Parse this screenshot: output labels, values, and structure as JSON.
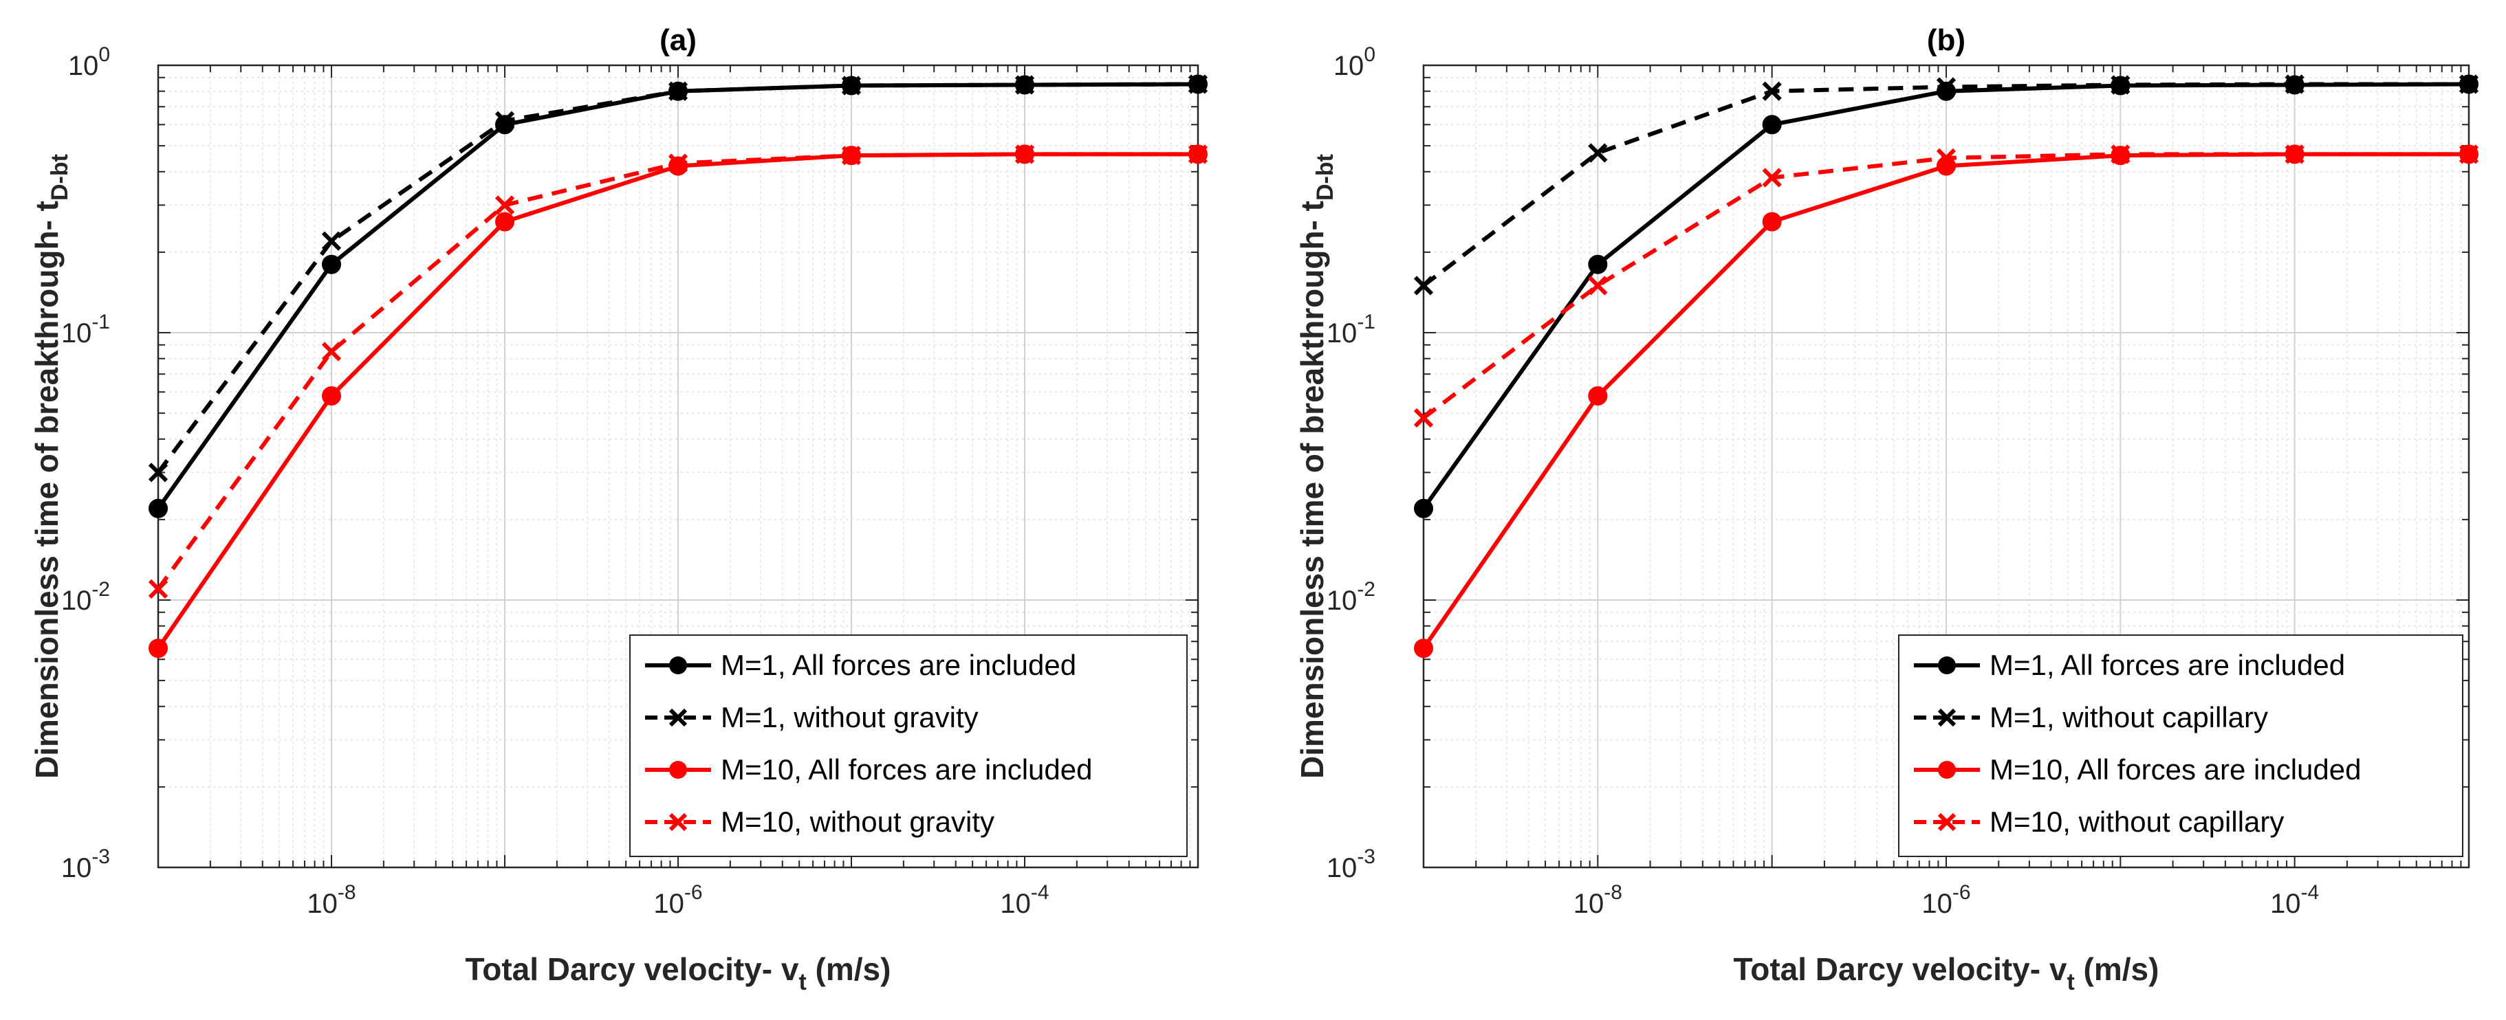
{
  "chart_data": [
    {
      "type": "line",
      "title": "(a)",
      "xlabel": "Total Darcy velocity- v",
      "xlabel_sub": "t",
      "xlabel_unit": " (m/s)",
      "ylabel": "Dimensionless time of breakthrough- t",
      "ylabel_sub": "D-bt",
      "xscale": "log",
      "yscale": "log",
      "xlim_exp": [
        -9,
        -3
      ],
      "ylim_exp": [
        -3,
        0
      ],
      "xtick_exps": [
        -8,
        -6,
        -4
      ],
      "ytick_exps": [
        -3,
        -2,
        -1,
        0
      ],
      "grid": "minor",
      "legend_position": "lower-right",
      "x": [
        1e-09,
        1e-08,
        1e-07,
        1e-06,
        1e-05,
        0.0001,
        0.001
      ],
      "series": [
        {
          "name": "M=1, All forces are included",
          "color": "#000000",
          "style": "solid",
          "marker": "circle",
          "values": [
            0.022,
            0.18,
            0.6,
            0.8,
            0.84,
            0.845,
            0.85
          ]
        },
        {
          "name": "M=1, without gravity",
          "color": "#000000",
          "style": "dashed",
          "marker": "x",
          "values": [
            0.03,
            0.22,
            0.62,
            0.8,
            0.84,
            0.845,
            0.85
          ]
        },
        {
          "name": "M=10, All forces are included",
          "color": "#ff0000",
          "style": "solid",
          "marker": "circle",
          "values": [
            0.0066,
            0.058,
            0.26,
            0.42,
            0.46,
            0.465,
            0.465
          ]
        },
        {
          "name": "M=10, without gravity",
          "color": "#ff0000",
          "style": "dashed",
          "marker": "x",
          "values": [
            0.011,
            0.085,
            0.3,
            0.43,
            0.46,
            0.465,
            0.465
          ]
        }
      ]
    },
    {
      "type": "line",
      "title": "(b)",
      "xlabel": "Total Darcy velocity- v",
      "xlabel_sub": "t",
      "xlabel_unit": " (m/s)",
      "ylabel": "Dimensionless time of breakthrough- t",
      "ylabel_sub": "D-bt",
      "xscale": "log",
      "yscale": "log",
      "xlim_exp": [
        -9,
        -3
      ],
      "ylim_exp": [
        -3,
        0
      ],
      "xtick_exps": [
        -8,
        -6,
        -4
      ],
      "ytick_exps": [
        -3,
        -2,
        -1,
        0
      ],
      "grid": "minor",
      "legend_position": "lower-right",
      "x": [
        1e-09,
        1e-08,
        1e-07,
        1e-06,
        1e-05,
        0.0001,
        0.001
      ],
      "series": [
        {
          "name": "M=1, All forces are included",
          "color": "#000000",
          "style": "solid",
          "marker": "circle",
          "values": [
            0.022,
            0.18,
            0.6,
            0.8,
            0.84,
            0.845,
            0.85
          ]
        },
        {
          "name": "M=1, without capillary",
          "color": "#000000",
          "style": "dashed",
          "marker": "x",
          "values": [
            0.15,
            0.47,
            0.8,
            0.83,
            0.845,
            0.85,
            0.85
          ]
        },
        {
          "name": "M=10, All forces are included",
          "color": "#ff0000",
          "style": "solid",
          "marker": "circle",
          "values": [
            0.0066,
            0.058,
            0.26,
            0.42,
            0.46,
            0.465,
            0.465
          ]
        },
        {
          "name": "M=10, without capillary",
          "color": "#ff0000",
          "style": "dashed",
          "marker": "x",
          "values": [
            0.048,
            0.15,
            0.38,
            0.45,
            0.465,
            0.465,
            0.465
          ]
        }
      ]
    }
  ]
}
